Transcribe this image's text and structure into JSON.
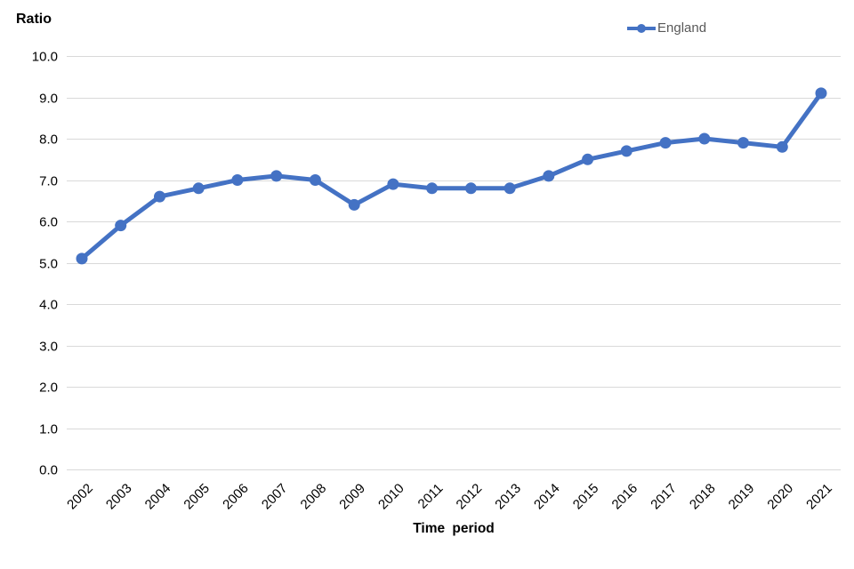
{
  "chart_data": {
    "type": "line",
    "ylabel": "Ratio",
    "xlabel": "Time period",
    "categories": [
      "2002",
      "2003",
      "2004",
      "2005",
      "2006",
      "2007",
      "2008",
      "2009",
      "2010",
      "2011",
      "2012",
      "2013",
      "2014",
      "2015",
      "2016",
      "2017",
      "2018",
      "2019",
      "2020",
      "2021"
    ],
    "series": [
      {
        "name": "England",
        "values": [
          5.1,
          5.9,
          6.6,
          6.8,
          7.0,
          7.1,
          7.0,
          6.4,
          6.9,
          6.8,
          6.8,
          6.8,
          7.1,
          7.5,
          7.7,
          7.9,
          8.0,
          7.9,
          7.8,
          9.1
        ]
      }
    ],
    "ylim": [
      0.0,
      10.0
    ],
    "ytick_step": 1.0,
    "ytick_labels": [
      "0.0",
      "1.0",
      "2.0",
      "3.0",
      "4.0",
      "5.0",
      "6.0",
      "7.0",
      "8.0",
      "9.0",
      "10.0"
    ],
    "grid": "horizontal",
    "legend_position": "top-right",
    "colors": {
      "line": "#4472C4",
      "marker": "#4472C4",
      "grid": "#D9D9D9",
      "legend_text": "#595959",
      "tick_text": "#000000"
    }
  }
}
